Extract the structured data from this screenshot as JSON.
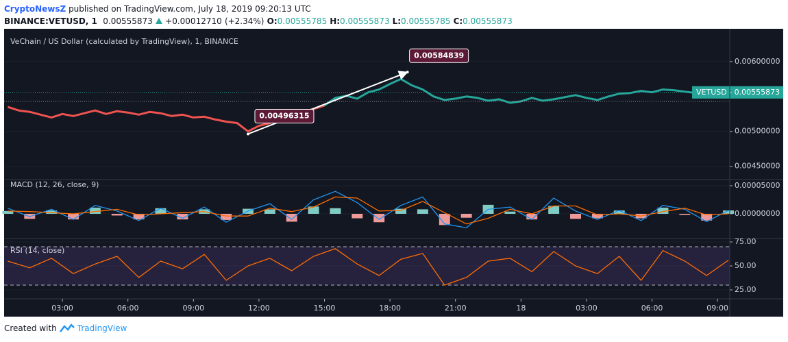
{
  "header": {
    "author": "CryptoNewsZ",
    "published": "published on TradingView.com, July 18, 2019 09:20:13 UTC",
    "symbol": "BINANCE:VETUSD, 1",
    "price": "0.00555873",
    "change": "+0.00012710",
    "change_pct": "(+2.34%)",
    "ohlc": [
      {
        "label": "O:",
        "value": "0.00555785"
      },
      {
        "label": "H:",
        "value": "0.00555873"
      },
      {
        "label": "L:",
        "value": "0.00555785"
      },
      {
        "label": "C:",
        "value": "0.00555873"
      }
    ]
  },
  "footer": {
    "prefix": "Created with",
    "brand": "TradingView"
  },
  "chart_data": [
    {
      "type": "line",
      "title": "VeChain / US Dollar (calculated by TradingView), 1, BINANCE",
      "xlim": [
        0.33,
        33.56
      ],
      "xticks": [
        {
          "value": 3,
          "label": "03:00"
        },
        {
          "value": 6,
          "label": "06:00"
        },
        {
          "value": 9,
          "label": "09:00"
        },
        {
          "value": 12,
          "label": "12:00"
        },
        {
          "value": 15,
          "label": "15:00"
        },
        {
          "value": 18,
          "label": "18:00"
        },
        {
          "value": 21,
          "label": "21:00"
        },
        {
          "value": 24,
          "label": "18"
        },
        {
          "value": 27,
          "label": "03:00"
        },
        {
          "value": 30,
          "label": "06:00"
        },
        {
          "value": 33,
          "label": "09:00"
        }
      ],
      "ylim": [
        0.00431,
        0.00647
      ],
      "yticks": [
        {
          "value": 0.0045,
          "label": "0.00450000"
        },
        {
          "value": 0.005,
          "label": "0.00500000"
        },
        {
          "value": 0.006,
          "label": "0.00600000"
        }
      ],
      "series": [
        {
          "color": "#ef5350",
          "x": [
            0.5,
            1,
            1.5,
            2,
            2.5,
            3,
            3.5,
            4,
            4.5,
            5,
            5.5,
            6,
            6.5,
            7,
            7.5,
            8,
            8.5,
            9,
            9.5,
            10,
            10.5,
            11,
            11.5,
            12,
            12.5,
            13,
            13.5,
            14,
            14.5,
            15
          ],
          "values": [
            0.00535,
            0.0053,
            0.00528,
            0.00524,
            0.0052,
            0.00525,
            0.00522,
            0.00526,
            0.0053,
            0.00525,
            0.00529,
            0.00527,
            0.00524,
            0.00528,
            0.00526,
            0.00522,
            0.00524,
            0.0052,
            0.00521,
            0.00517,
            0.00514,
            0.00512,
            0.005,
            0.00508,
            0.00512,
            0.00518,
            0.00524,
            0.00528,
            0.00532,
            0.00537
          ]
        },
        {
          "color": "#26a69a",
          "x": [
            15,
            15.5,
            16,
            16.5,
            17,
            17.5,
            18,
            18.5,
            19,
            19.5,
            20,
            20.5,
            21,
            21.5,
            22,
            22.5,
            23,
            23.5,
            24,
            24.5,
            25,
            25.5,
            26,
            26.5,
            27,
            27.5,
            28,
            28.5,
            29,
            29.5,
            30,
            30.5,
            31,
            31.5,
            32,
            32.5,
            33,
            33.5
          ],
          "values": [
            0.00537,
            0.00548,
            0.00551,
            0.00547,
            0.00556,
            0.0056,
            0.00568,
            0.00575,
            0.00566,
            0.0056,
            0.0055,
            0.00545,
            0.00547,
            0.0055,
            0.00548,
            0.00544,
            0.00546,
            0.00541,
            0.00543,
            0.00548,
            0.00544,
            0.00546,
            0.00549,
            0.00552,
            0.00548,
            0.00545,
            0.0055,
            0.00554,
            0.00555,
            0.00558,
            0.00556,
            0.0056,
            0.00559,
            0.00557,
            0.00555,
            0.00553,
            0.00552,
            0.00556
          ]
        }
      ],
      "price_line": {
        "value": 0.00555873,
        "label": "VETUSD - 0.00555873",
        "color": "#26a69a"
      },
      "prev_close_line": 0.00543163,
      "annotations": [
        {
          "x": 11.5,
          "value": 0.00496315
        },
        {
          "x": 18.8,
          "value": 0.00584839
        }
      ]
    },
    {
      "type": "macd",
      "title": "MACD (12, 26, close, 9)",
      "x": [
        0.5,
        1.5,
        2.5,
        3.5,
        4.5,
        5.5,
        6.5,
        7.5,
        8.5,
        9.5,
        10.5,
        11.5,
        12.5,
        13.5,
        14.5,
        15.5,
        16.5,
        17.5,
        18.5,
        19.5,
        20.5,
        21.5,
        22.5,
        23.5,
        24.5,
        25.5,
        26.5,
        27.5,
        28.5,
        29.5,
        30.5,
        31.5,
        32.5,
        33.5
      ],
      "ylim": [
        -4.4e-05,
        6.1e-05
      ],
      "yticks": [
        {
          "value": 0,
          "label": "0.00000000"
        },
        {
          "value": 5e-05,
          "label": "0.00005000"
        }
      ],
      "series": [
        {
          "color": "#2196f3",
          "values": [
            1e-05,
            -5e-06,
            8e-06,
            -1e-05,
            1.5e-05,
            5e-06,
            -1.2e-05,
            1e-05,
            -8e-06,
            1.2e-05,
            -1.5e-05,
            5e-06,
            1.8e-05,
            -1e-05,
            2.5e-05,
            4e-05,
            2e-05,
            -1e-05,
            1.5e-05,
            3e-05,
            -1.8e-05,
            -2.5e-05,
            8e-06,
            1.2e-05,
            -1e-05,
            2.8e-05,
            5e-06,
            -1e-05,
            6e-06,
            -1.2e-05,
            1.5e-05,
            8e-06,
            -1.4e-05,
            6e-06
          ]
        },
        {
          "color": "#ff6d00",
          "values": [
            5e-06,
            4e-06,
            2e-06,
            0,
            4e-06,
            8e-06,
            -2e-06,
            0,
            2e-06,
            4e-06,
            -4e-06,
            -4e-06,
            1e-05,
            4e-06,
            1.2e-05,
            3e-05,
            2.8e-05,
            5e-06,
            6e-06,
            2.2e-05,
            2e-06,
            -1.8e-05,
            -8e-06,
            8e-06,
            0,
            1.4e-05,
            1.4e-05,
            -2e-06,
            0,
            -4e-06,
            4e-06,
            1e-05,
            -2e-06,
            0
          ]
        }
      ],
      "histogram": {
        "colors": [
          "#80cbc4",
          "#ef9a9a"
        ],
        "values": [
          5e-06,
          -9e-06,
          6e-06,
          -1e-05,
          1.1e-05,
          -3e-06,
          -1e-05,
          1e-05,
          -1e-05,
          8e-06,
          -1.1e-05,
          9e-06,
          8e-06,
          -1.4e-05,
          1.3e-05,
          1e-05,
          -8e-06,
          -1.5e-05,
          9e-06,
          8e-06,
          -2e-05,
          -7e-06,
          1.6e-05,
          4e-06,
          -1e-05,
          1.4e-05,
          -9e-06,
          -8e-06,
          6e-06,
          -8e-06,
          1.1e-05,
          -2e-06,
          -1.2e-05,
          6e-06
        ]
      }
    },
    {
      "type": "rsi",
      "title": "RSI (14, close)",
      "x": [
        0.5,
        1.5,
        2.5,
        3.5,
        4.5,
        5.5,
        6.5,
        7.5,
        8.5,
        9.5,
        10.5,
        11.5,
        12.5,
        13.5,
        14.5,
        15.5,
        16.5,
        17.5,
        18.5,
        19.5,
        20.5,
        21.5,
        22.5,
        23.5,
        24.5,
        25.5,
        26.5,
        27.5,
        28.5,
        29.5,
        30.5,
        31.5,
        32.5,
        33.5
      ],
      "ylim": [
        15.7,
        78.6
      ],
      "yticks": [
        {
          "value": 25,
          "label": "25.00"
        },
        {
          "value": 50,
          "label": "50.00"
        },
        {
          "value": 75,
          "label": "75.00"
        }
      ],
      "band": [
        30,
        70
      ],
      "series": [
        {
          "color": "#ff6d00",
          "values": [
            55,
            48,
            58,
            42,
            52,
            60,
            38,
            55,
            47,
            62,
            35,
            50,
            58,
            45,
            60,
            68,
            52,
            40,
            57,
            63,
            30,
            38,
            55,
            58,
            44,
            65,
            50,
            42,
            60,
            35,
            66,
            55,
            40,
            56
          ]
        }
      ]
    }
  ]
}
